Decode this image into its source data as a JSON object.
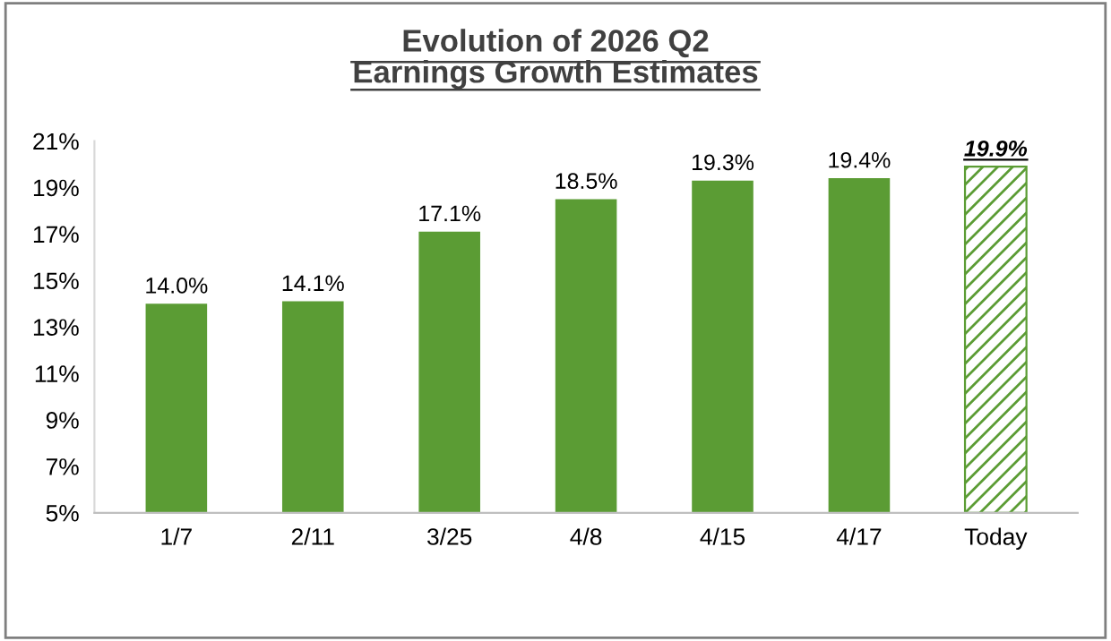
{
  "chart_data": {
    "type": "bar",
    "title": "Evolution of 2026 Q2\nEarnings Growth Estimates",
    "categories": [
      "1/7",
      "2/11",
      "3/25",
      "4/8",
      "4/15",
      "4/17",
      "Today"
    ],
    "values": [
      14.0,
      14.1,
      17.1,
      18.5,
      19.3,
      19.4,
      19.9
    ],
    "value_labels": [
      "14.0%",
      "14.1%",
      "17.1%",
      "18.5%",
      "19.3%",
      "19.4%",
      "19.9%"
    ],
    "color": "#5b9c34",
    "ylim": [
      5,
      21
    ],
    "yticks": [
      {
        "value": 5,
        "label": "5%"
      },
      {
        "value": 7,
        "label": "7%"
      },
      {
        "value": 9,
        "label": "9%"
      },
      {
        "value": 11,
        "label": "11%"
      },
      {
        "value": 13,
        "label": "13%"
      },
      {
        "value": 15,
        "label": "15%"
      },
      {
        "value": 17,
        "label": "17%"
      },
      {
        "value": 19,
        "label": "19%"
      },
      {
        "value": 21,
        "label": "21%"
      }
    ],
    "grid": false
  }
}
